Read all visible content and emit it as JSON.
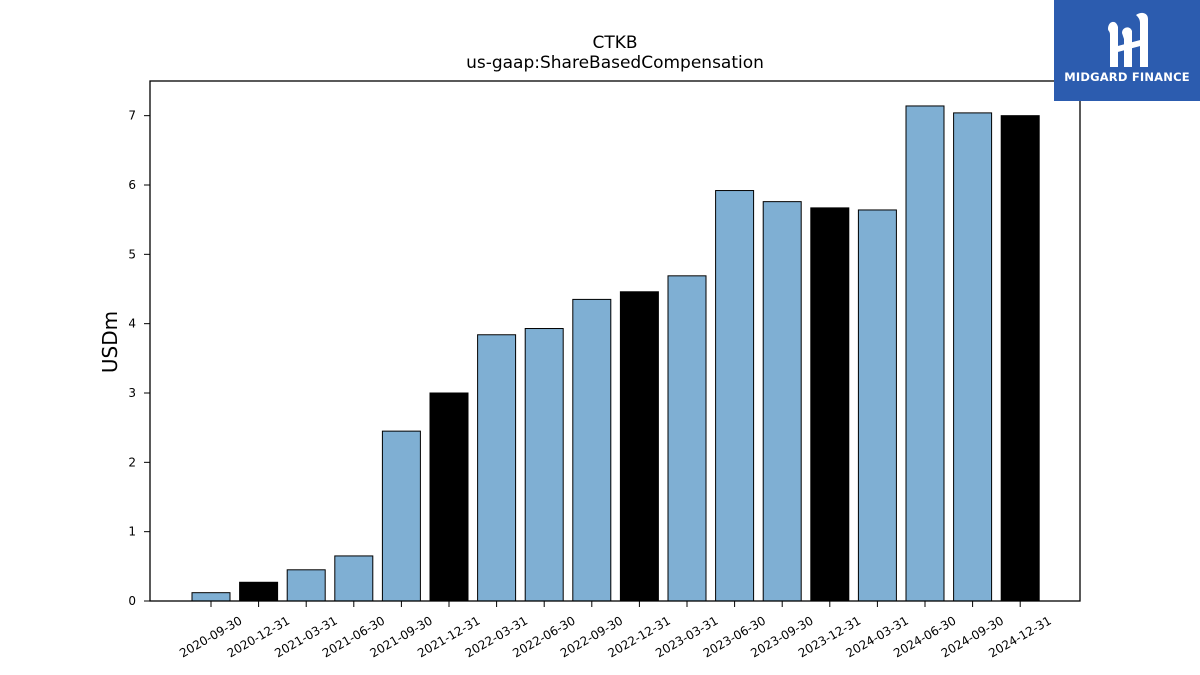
{
  "logo": {
    "text": "MIDGARD FINANCE",
    "icon": "midgard-logo-icon",
    "background": "#2c5caf"
  },
  "chart_data": {
    "type": "bar",
    "title": "CTKB",
    "subtitle": "us-gaap:ShareBasedCompensation",
    "xlabel": "",
    "ylabel": "USDm",
    "ylim": [
      0,
      7.5
    ],
    "yticks": [
      0,
      1,
      2,
      3,
      4,
      5,
      6,
      7
    ],
    "grid": false,
    "colors": {
      "quarter": "#7fafd3",
      "year_end": "#000000",
      "edge": "#000000"
    },
    "categories": [
      "2020-09-30",
      "2020-12-31",
      "2021-03-31",
      "2021-06-30",
      "2021-09-30",
      "2021-12-31",
      "2022-03-31",
      "2022-06-30",
      "2022-09-30",
      "2022-12-31",
      "2023-03-31",
      "2023-06-30",
      "2023-09-30",
      "2023-12-31",
      "2024-03-31",
      "2024-06-30",
      "2024-09-30",
      "2024-12-31"
    ],
    "values": [
      0.12,
      0.27,
      0.45,
      0.65,
      2.45,
      3.0,
      3.84,
      3.93,
      4.35,
      4.46,
      4.69,
      5.92,
      5.76,
      5.67,
      5.64,
      7.14,
      7.04,
      7.0
    ],
    "year_end": [
      false,
      true,
      false,
      false,
      false,
      true,
      false,
      false,
      false,
      true,
      false,
      false,
      false,
      true,
      false,
      false,
      false,
      true
    ]
  }
}
